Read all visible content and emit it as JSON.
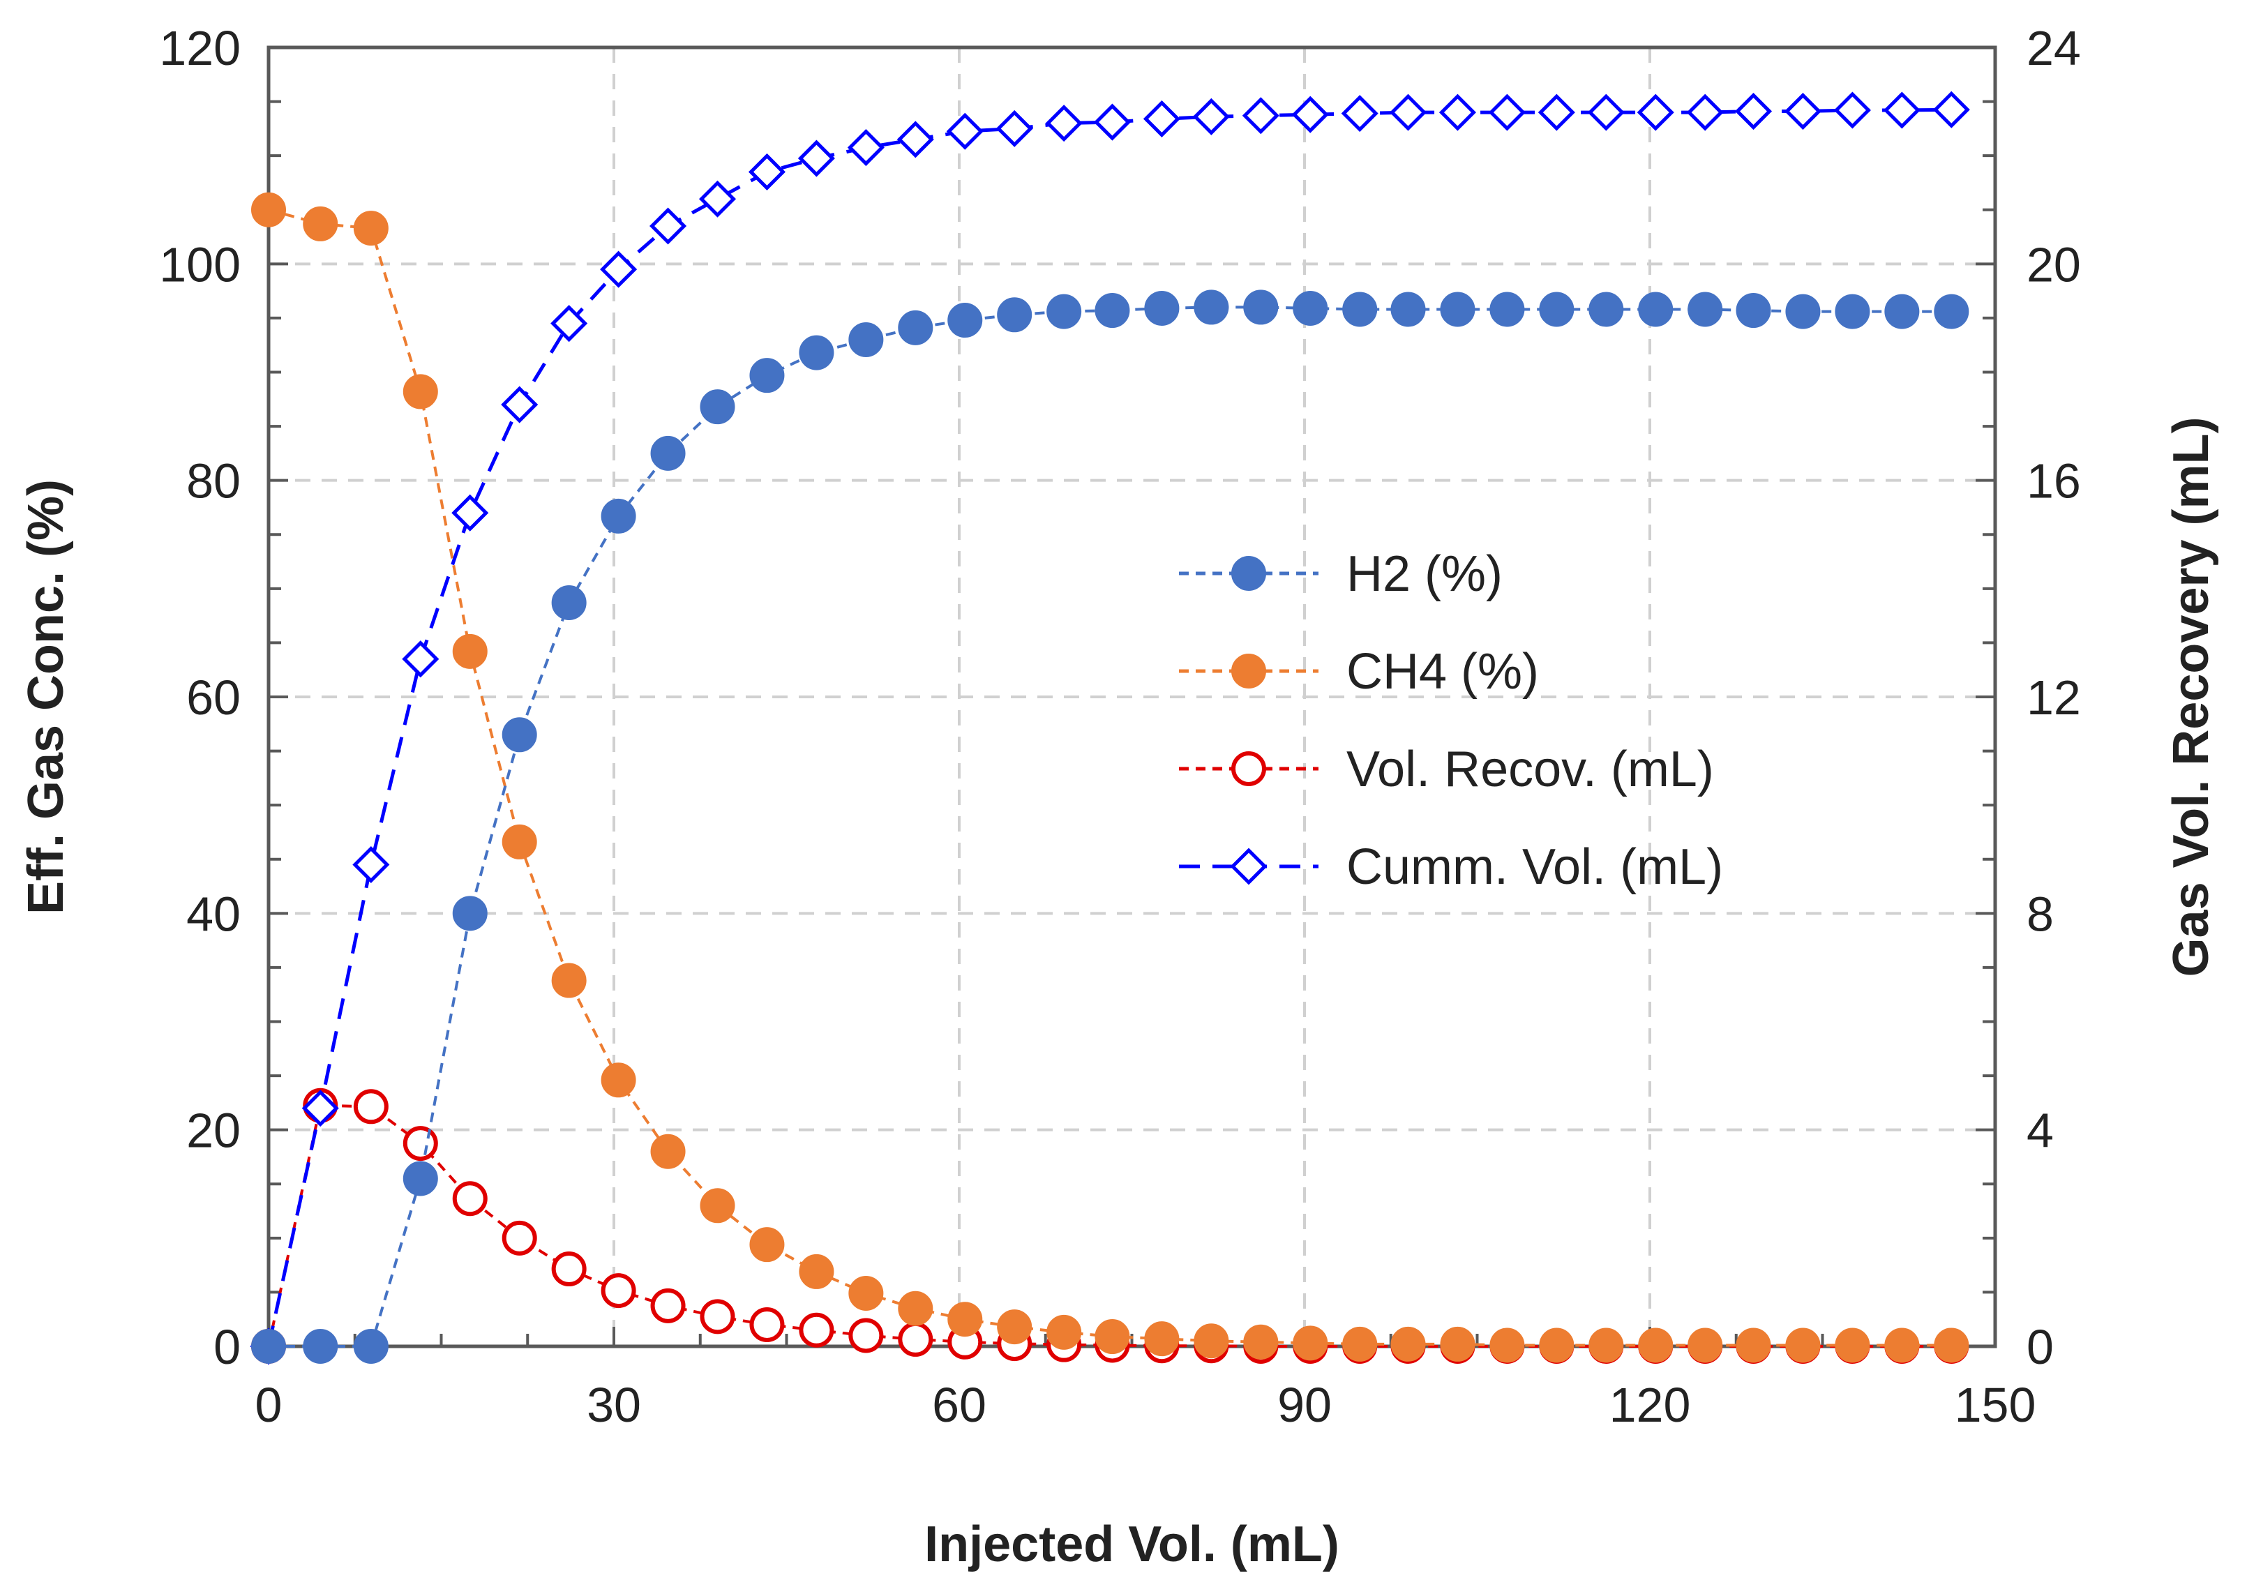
{
  "chart_data": {
    "type": "line",
    "title": "",
    "xlabel": "Injected Vol. (mL)",
    "ylabel_left": "Eff. Gas Conc. (%)",
    "ylabel_right": "Gas Vol. Recovery (mL)",
    "xlim": [
      0,
      150
    ],
    "ylim_left": [
      0,
      120
    ],
    "ylim_right": [
      0,
      24
    ],
    "grid": true,
    "legend_position": "center-right",
    "x_ticks": [
      "0",
      "30",
      "60",
      "90",
      "120",
      "150"
    ],
    "y_left_ticks": [
      "0",
      "20",
      "40",
      "60",
      "80",
      "100",
      "120"
    ],
    "y_right_ticks": [
      "0",
      "4",
      "8",
      "12",
      "16",
      "20",
      "24"
    ],
    "x": [
      0,
      4.5,
      8.9,
      13.2,
      17.5,
      21.8,
      26.1,
      30.4,
      34.7,
      39.0,
      43.3,
      47.6,
      51.9,
      56.2,
      60.5,
      64.8,
      69.1,
      73.3,
      77.6,
      81.9,
      86.2,
      90.5,
      94.8,
      99.0,
      103.3,
      107.6,
      111.9,
      116.2,
      120.5,
      124.8,
      129.0,
      133.3,
      137.6,
      141.9,
      146.2
    ],
    "series": [
      {
        "name": "H2 (%)",
        "axis": "left",
        "color": "#4472C4",
        "marker": "filled-circle",
        "values": [
          0,
          0,
          0,
          15.5,
          40,
          56.5,
          68.7,
          76.7,
          82.5,
          86.8,
          89.7,
          91.8,
          93.0,
          94.1,
          94.8,
          95.3,
          95.6,
          95.7,
          95.9,
          96.0,
          96.0,
          95.9,
          95.8,
          95.8,
          95.8,
          95.8,
          95.8,
          95.8,
          95.8,
          95.8,
          95.7,
          95.6,
          95.6,
          95.6,
          95.6
        ]
      },
      {
        "name": "CH4 (%)",
        "axis": "left",
        "color": "#ED7D31",
        "marker": "filled-circle",
        "values": [
          105,
          103.7,
          103.3,
          88.2,
          64.2,
          46.6,
          33.8,
          24.6,
          18.0,
          13.0,
          9.4,
          6.9,
          4.9,
          3.5,
          2.5,
          1.8,
          1.3,
          0.9,
          0.7,
          0.5,
          0.4,
          0.3,
          0.2,
          0.2,
          0.2,
          0.1,
          0.1,
          0.1,
          0.1,
          0.1,
          0.1,
          0.1,
          0.1,
          0.1,
          0.1
        ]
      },
      {
        "name": "Vol. Recov. (mL)",
        "axis": "right",
        "color": "#E00000",
        "marker": "open-circle",
        "values": [
          0,
          4.45,
          4.43,
          3.75,
          2.73,
          2.0,
          1.43,
          1.03,
          0.75,
          0.55,
          0.4,
          0.3,
          0.2,
          0.13,
          0.08,
          0.05,
          0.03,
          0.02,
          0.01,
          0.01,
          0,
          0,
          0,
          0,
          0,
          0,
          0,
          0,
          0,
          0,
          0,
          0,
          0,
          0,
          0
        ]
      },
      {
        "name": "Cumm. Vol. (mL)",
        "axis": "right",
        "color": "#0000FF",
        "marker": "open-diamond",
        "values": [
          0,
          4.4,
          8.9,
          12.7,
          15.4,
          17.4,
          18.9,
          19.9,
          20.7,
          21.2,
          21.7,
          21.95,
          22.15,
          22.3,
          22.45,
          22.5,
          22.6,
          22.62,
          22.68,
          22.72,
          22.74,
          22.76,
          22.78,
          22.8,
          22.8,
          22.8,
          22.8,
          22.8,
          22.8,
          22.8,
          22.82,
          22.82,
          22.84,
          22.84,
          22.85
        ]
      }
    ]
  }
}
